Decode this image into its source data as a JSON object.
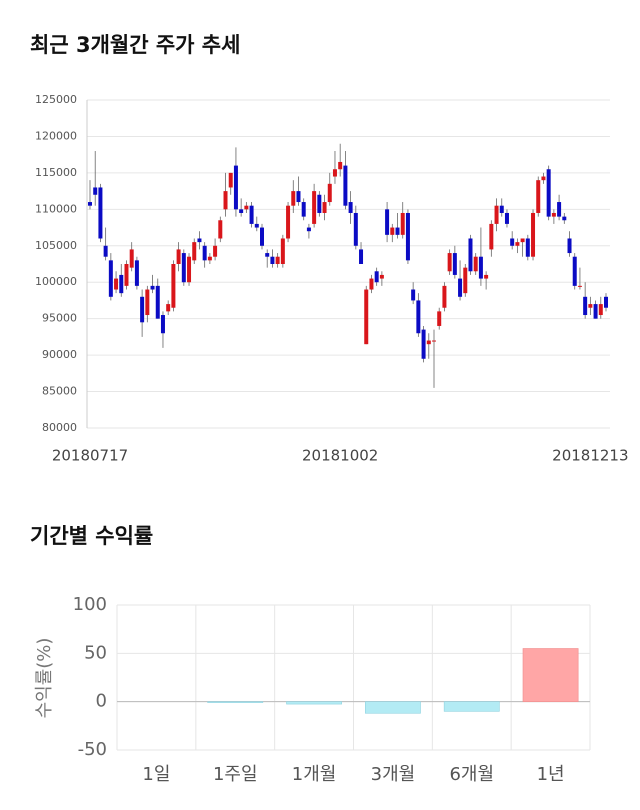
{
  "chart_data": [
    {
      "type": "candlestick",
      "title": "최근 3개월간 주가 추세",
      "categories": [
        "20180717",
        null,
        null,
        null,
        null,
        null,
        null,
        null,
        null,
        null,
        null,
        null,
        null,
        null,
        null,
        null,
        null,
        null,
        null,
        null,
        null,
        null,
        null,
        null,
        null,
        null,
        null,
        null,
        null,
        null,
        null,
        null,
        null,
        null,
        null,
        null,
        null,
        null,
        null,
        null,
        null,
        null,
        null,
        null,
        null,
        null,
        null,
        null,
        "20181002",
        null,
        null,
        null,
        null,
        null,
        null,
        null,
        null,
        null,
        null,
        null,
        null,
        null,
        null,
        null,
        null,
        null,
        null,
        null,
        null,
        null,
        null,
        null,
        null,
        null,
        null,
        null,
        null,
        null,
        null,
        null,
        null,
        null,
        null,
        null,
        null,
        null,
        null,
        null,
        null,
        null,
        null,
        null,
        null,
        null,
        null,
        null,
        "20181213",
        null,
        null,
        null
      ],
      "open": [
        111000,
        113000,
        113000,
        105000,
        103000,
        99000,
        101000,
        99500,
        102000,
        103000,
        98000,
        95500,
        99500,
        99500,
        95500,
        96000,
        96500,
        102500,
        104000,
        100000,
        103000,
        106000,
        105000,
        103000,
        103500,
        106000,
        110000,
        113000,
        116000,
        110000,
        110000,
        110500,
        108000,
        107500,
        104000,
        103500,
        102500,
        102500,
        106000,
        110500,
        112500,
        111000,
        107500,
        108000,
        112000,
        109500,
        111000,
        114500,
        115500,
        116000,
        111000,
        109500,
        104500,
        91500,
        99000,
        101500,
        100500,
        110000,
        106500,
        107500,
        106500,
        109500,
        99000,
        97500,
        93500,
        91500,
        92000,
        94000,
        96500,
        101500,
        104000,
        100500,
        98500,
        106000,
        101500,
        103500,
        100500,
        104500,
        108000,
        110500,
        109500,
        106000,
        105000,
        105500,
        106000,
        103500,
        109500,
        114000,
        115500,
        109000,
        111000,
        109000,
        106000,
        103500,
        99500,
        98000,
        96500,
        97000,
        95500,
        98000
      ],
      "high": [
        114000,
        118000,
        113500,
        107500,
        104000,
        101500,
        102500,
        103000,
        105500,
        103500,
        99000,
        99500,
        101000,
        100500,
        96000,
        97500,
        103000,
        105500,
        104500,
        104000,
        106000,
        107000,
        105500,
        104000,
        106000,
        109000,
        115000,
        115000,
        118500,
        111500,
        111000,
        111000,
        109000,
        108000,
        104500,
        104500,
        104000,
        106500,
        111000,
        114000,
        114500,
        111500,
        108000,
        113500,
        112500,
        112000,
        115000,
        118000,
        119000,
        118000,
        112500,
        110500,
        105500,
        99500,
        101000,
        102000,
        101500,
        111000,
        108000,
        109500,
        111000,
        110000,
        100000,
        98500,
        94000,
        93000,
        93500,
        96500,
        100000,
        104500,
        105000,
        103000,
        102500,
        106500,
        104000,
        107500,
        101500,
        108500,
        111500,
        111500,
        110000,
        107000,
        106000,
        106000,
        106500,
        110000,
        114500,
        115000,
        116000,
        110000,
        112000,
        109500,
        107000,
        104000,
        102000,
        100000,
        98000,
        97500,
        98000,
        98500
      ],
      "low": [
        110000,
        110500,
        105500,
        103000,
        97500,
        98500,
        98000,
        99000,
        101500,
        99000,
        92500,
        94500,
        98500,
        95000,
        91000,
        95500,
        96000,
        101500,
        99500,
        99500,
        102500,
        104500,
        102000,
        102500,
        103000,
        105500,
        109000,
        112000,
        109000,
        109000,
        109500,
        107500,
        107000,
        104500,
        102000,
        102000,
        102000,
        102000,
        105500,
        109500,
        110500,
        108500,
        106000,
        107500,
        109000,
        108500,
        110500,
        113500,
        114500,
        110000,
        108000,
        104500,
        102500,
        91500,
        98500,
        99500,
        99500,
        105500,
        105500,
        106000,
        106000,
        102500,
        97000,
        92500,
        89000,
        89500,
        85500,
        93500,
        96000,
        101000,
        100500,
        97500,
        98000,
        101000,
        101000,
        99500,
        99000,
        103500,
        107000,
        109000,
        107500,
        104500,
        104000,
        103500,
        103000,
        103000,
        109000,
        113500,
        108500,
        108000,
        108500,
        108000,
        103500,
        99000,
        99000,
        95000,
        95500,
        95000,
        95000,
        96000
      ],
      "close": [
        110500,
        112000,
        106000,
        103500,
        98000,
        100500,
        98500,
        102500,
        104500,
        99500,
        94500,
        99000,
        99000,
        95000,
        93000,
        97000,
        102500,
        104500,
        100000,
        103500,
        105500,
        105500,
        103000,
        103500,
        105000,
        108500,
        112500,
        115000,
        110000,
        109500,
        110500,
        108000,
        107500,
        105000,
        103500,
        102500,
        103500,
        106000,
        110500,
        112500,
        111000,
        109000,
        107000,
        112500,
        109500,
        111000,
        113500,
        115500,
        116500,
        110500,
        109500,
        105000,
        102500,
        99000,
        100500,
        100000,
        101000,
        106500,
        107500,
        106500,
        109500,
        103000,
        97500,
        93000,
        89500,
        92000,
        92000,
        96000,
        99500,
        104000,
        101000,
        98000,
        102000,
        101500,
        103500,
        100500,
        101000,
        108000,
        110500,
        109500,
        108000,
        105000,
        105500,
        106000,
        103500,
        109500,
        114000,
        114500,
        109000,
        109500,
        109000,
        108500,
        104000,
        99500,
        99500,
        95500,
        97000,
        95000,
        97000,
        96500
      ],
      "up_color": "#d9161b",
      "down_color": "#0b0bc4",
      "ylim": [
        80000,
        125000
      ],
      "yticks": [
        80000,
        85000,
        90000,
        95000,
        100000,
        105000,
        110000,
        115000,
        120000,
        125000
      ],
      "grid": true
    },
    {
      "type": "bar",
      "title": "기간별 수익률",
      "ylabel": "수익률(%)",
      "categories": [
        "1일",
        "1주일",
        "1개월",
        "3개월",
        "6개월",
        "1년"
      ],
      "values": [
        0,
        -1,
        -2.5,
        -12,
        -10,
        55
      ],
      "positive_color": "#ffa6a6",
      "negative_color": "#b3ebf4",
      "ylim": [
        -50,
        100
      ],
      "yticks": [
        -50,
        0,
        50,
        100
      ],
      "grid": true
    }
  ]
}
